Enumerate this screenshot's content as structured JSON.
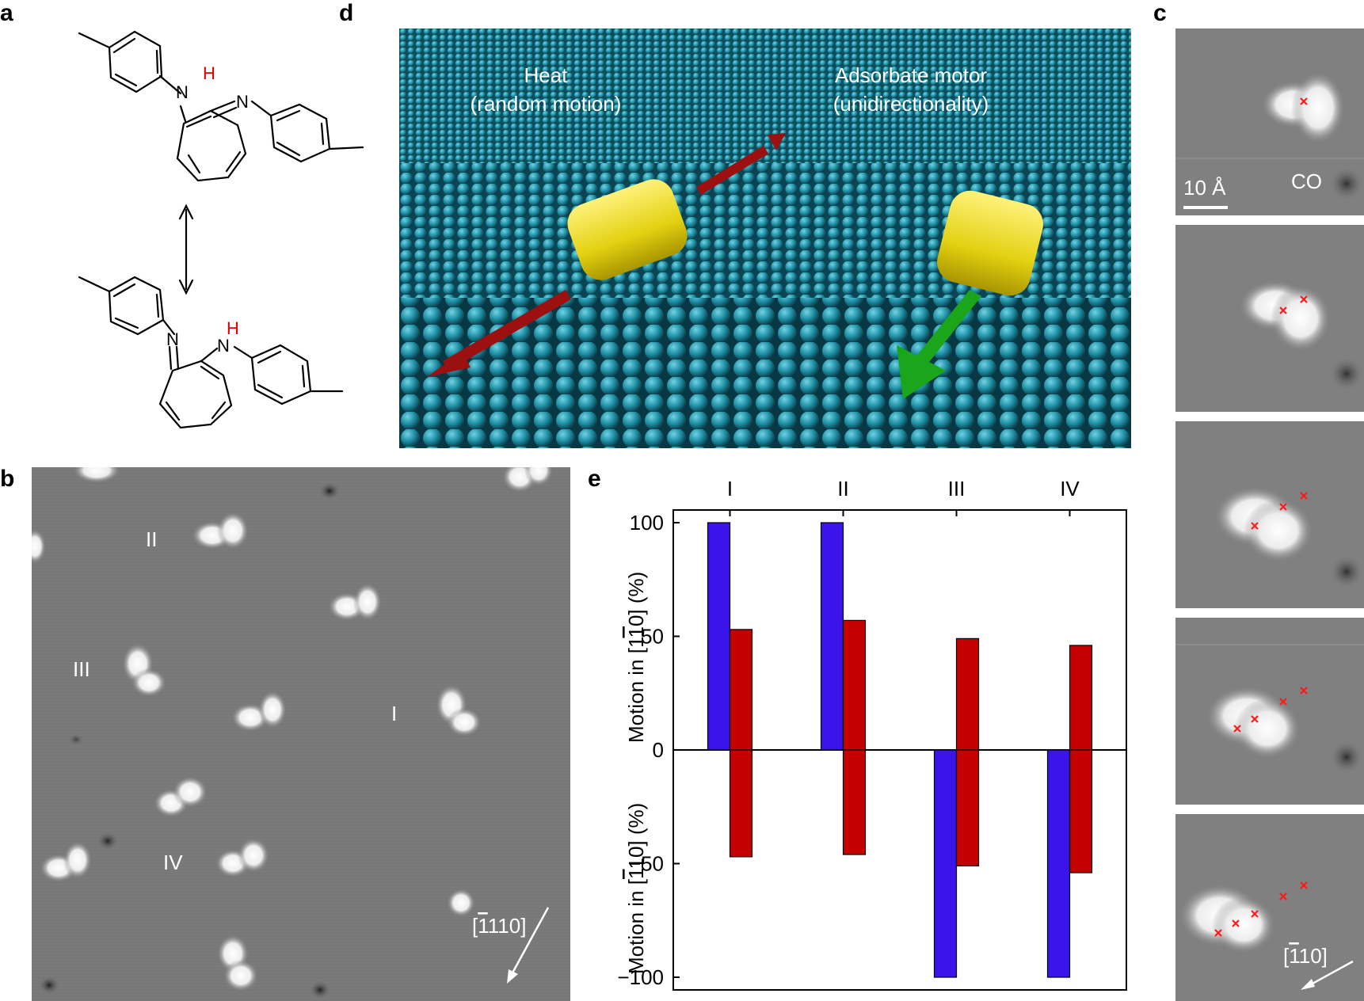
{
  "panels": {
    "a": "a",
    "b": "b",
    "c": "c",
    "d": "d",
    "e": "e"
  },
  "panel_a": {
    "top_NH_N": "N",
    "top_NH_H": "H",
    "top_imine_N": "N",
    "bottom_imine_N": "N",
    "bottom_NH_N": "N",
    "bottom_NH_H": "H",
    "equilibrium_arrow": "double-headed-arrow"
  },
  "panel_b": {
    "labels": [
      "II",
      "III",
      "I",
      "IV"
    ],
    "direction": "[̄110]",
    "direction_main": "110]",
    "direction_bar": "1",
    "direction_open": "["
  },
  "panel_c": {
    "scalebar": "10 Å",
    "co_label": "CO",
    "direction_open": "[",
    "direction_bar": "1",
    "direction_main": "10]",
    "frames": [
      {
        "marks": 1
      },
      {
        "marks": 2
      },
      {
        "marks": 3
      },
      {
        "marks": 4
      },
      {
        "marks": 5
      }
    ]
  },
  "panel_d": {
    "left_label_line1": "Heat",
    "left_label_line2": "(random motion)",
    "right_label_line1": "Adsorbate motor",
    "right_label_line2": "(unidirectionality)",
    "colors": {
      "surface": "#1f8ea3",
      "block": "#e8d81a",
      "red_arrow": "#9c1010",
      "green_arrow": "#1ba51b"
    }
  },
  "chart_data": {
    "type": "bar",
    "categories": [
      "I",
      "II",
      "III",
      "IV"
    ],
    "series": [
      {
        "color": "#3a14e8",
        "values": [
          100,
          100,
          -100,
          -100
        ]
      },
      {
        "color": "#c40000",
        "values_positive": [
          53,
          57,
          49,
          46
        ],
        "values_negative": [
          -47,
          -46,
          -51,
          -54
        ]
      }
    ],
    "ylabel_top": "Motion in [1̄1̄0] (%)",
    "ylabel_bottom": "Motion in [̄10] (%)",
    "ylabel_top_pre": "Motion in [1",
    "ylabel_top_bar": "1",
    "ylabel_top_post": "0] (%)",
    "ylabel_bottom_pre": "Motion in [",
    "ylabel_bottom_bar": "1",
    "ylabel_bottom_post": "10] (%)",
    "yticks": [
      "100",
      "50",
      "0",
      "−50",
      "−100"
    ],
    "ytick_values": [
      100,
      50,
      0,
      -50,
      -100
    ],
    "ylim": [
      -100,
      100
    ]
  }
}
